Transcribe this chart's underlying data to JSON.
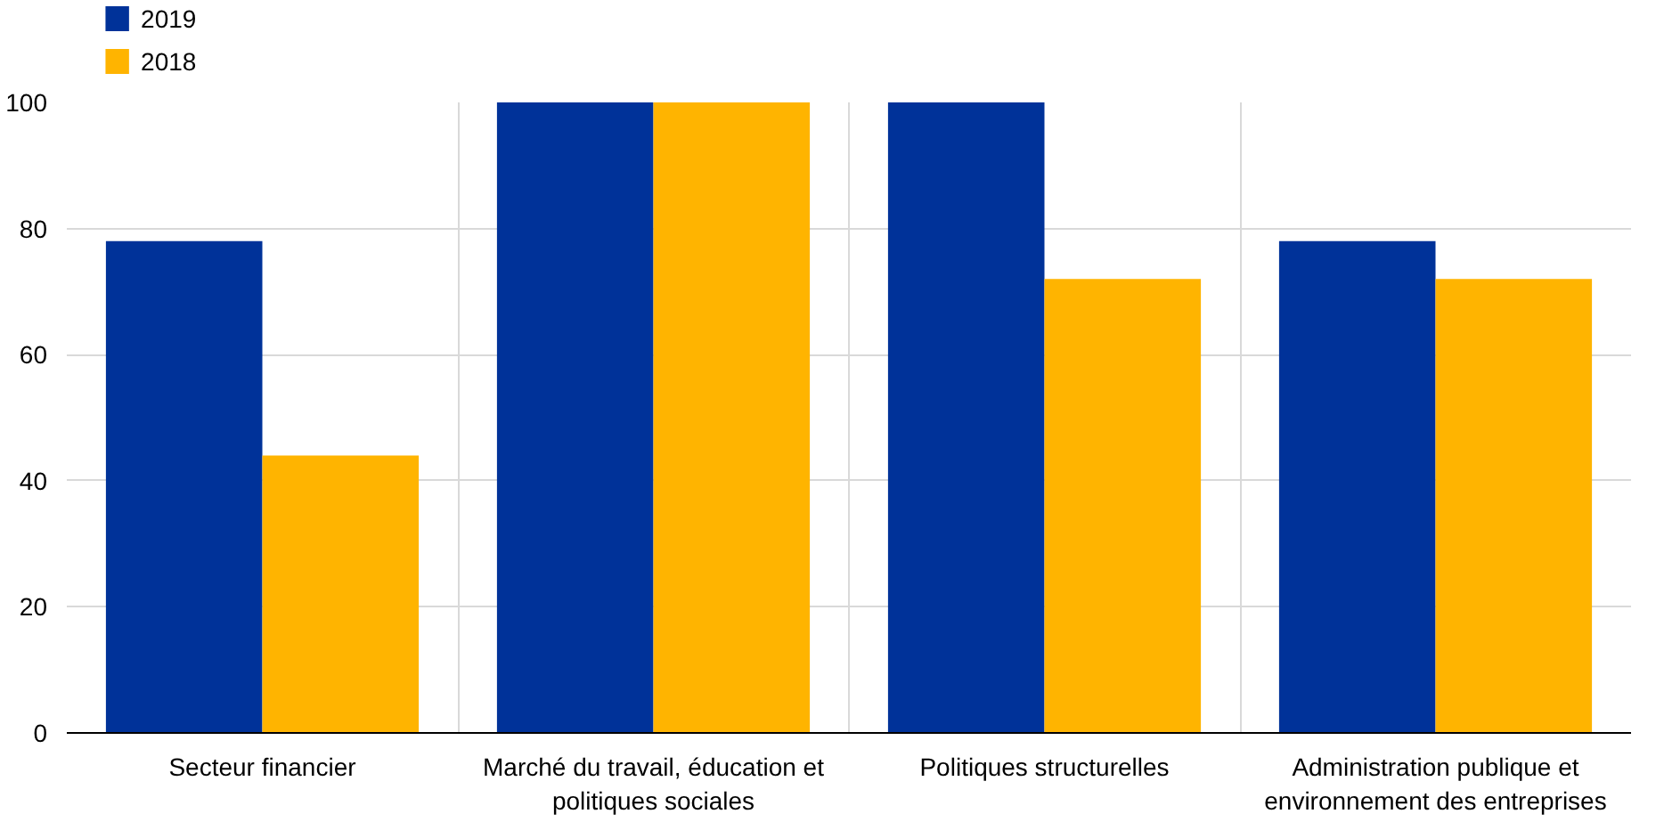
{
  "chart_data": {
    "type": "bar",
    "categories": [
      "Secteur financier",
      "Marché du travail, éducation et politiques sociales",
      "Politiques structurelles",
      "Administration publique et environnement des entreprises"
    ],
    "series": [
      {
        "name": "2019",
        "color": "#003299",
        "values": [
          78,
          100,
          100,
          78
        ]
      },
      {
        "name": "2018",
        "color": "#ffb400",
        "values": [
          44,
          100,
          72,
          72
        ]
      }
    ],
    "ylim": [
      0,
      100
    ],
    "yticks": [
      0,
      20,
      40,
      60,
      80,
      100
    ],
    "grid": true,
    "legend": "top left"
  }
}
